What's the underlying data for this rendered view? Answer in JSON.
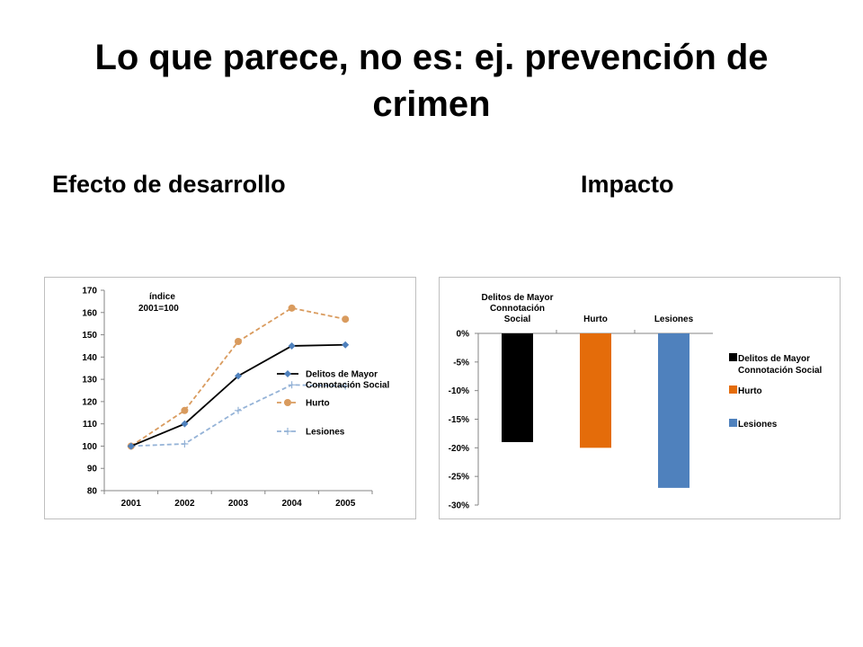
{
  "slide": {
    "title": "Lo que parece, no es: ej. prevención de crimen",
    "left_heading": "Efecto de desarrollo",
    "right_heading": "Impacto"
  },
  "chart_data": [
    {
      "type": "line",
      "title": "",
      "annotation": [
        "índice",
        "2001=100"
      ],
      "x": [
        "2001",
        "2002",
        "2003",
        "2004",
        "2005"
      ],
      "ylim": [
        80,
        170
      ],
      "yticks": [
        80,
        90,
        100,
        110,
        120,
        130,
        140,
        150,
        160,
        170
      ],
      "grid": false,
      "legend_position": "right",
      "series": [
        {
          "name": "Delitos de Mayor Connotación Social",
          "legend_lines": [
            "Delitos de Mayor",
            "Connotación Social"
          ],
          "values": [
            100,
            110,
            131.5,
            145,
            145.5
          ],
          "color": "#000000",
          "dash": "solid",
          "marker": "diamond",
          "marker_color": "#4f81bd"
        },
        {
          "name": "Hurto",
          "legend_lines": [
            "Hurto"
          ],
          "values": [
            100,
            116,
            147,
            162,
            157
          ],
          "color": "#d99b5e",
          "dash": "dashed",
          "marker": "circle",
          "marker_color": "#d99b5e"
        },
        {
          "name": "Lesiones",
          "legend_lines": [
            "Lesiones"
          ],
          "values": [
            100,
            101,
            116,
            127.5,
            127
          ],
          "color": "#95b3d7",
          "dash": "dashed",
          "marker": "plus",
          "marker_color": "#95b3d7"
        }
      ]
    },
    {
      "type": "bar",
      "title": "",
      "categories": [
        "Delitos de Mayor Connotación Social",
        "Hurto",
        "Lesiones"
      ],
      "category_lines": [
        [
          "Delitos de Mayor",
          "Connotación",
          "Social"
        ],
        [
          "Hurto"
        ],
        [
          "Lesiones"
        ]
      ],
      "values": [
        -19,
        -20,
        -27
      ],
      "colors": [
        "#000000",
        "#e46c0a",
        "#4f81bd"
      ],
      "ylim": [
        -30,
        0
      ],
      "yticks": [
        0,
        -5,
        -10,
        -15,
        -20,
        -25,
        -30
      ],
      "ytick_labels": [
        "0%",
        "-5%",
        "-10%",
        "-15%",
        "-20%",
        "-25%",
        "-30%"
      ],
      "grid": false,
      "legend_position": "right",
      "legend": [
        {
          "lines": [
            "Delitos de Mayor",
            "Connotación Social"
          ],
          "color": "#000000"
        },
        {
          "lines": [
            "Hurto"
          ],
          "color": "#e46c0a"
        },
        {
          "lines": [
            "Lesiones"
          ],
          "color": "#4f81bd"
        }
      ]
    }
  ]
}
